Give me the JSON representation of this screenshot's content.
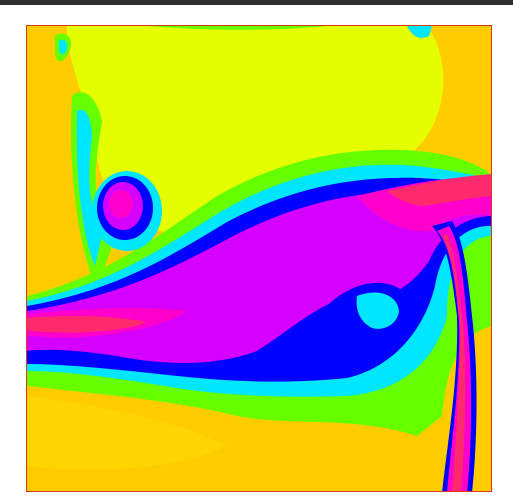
{
  "window": {
    "title": ""
  },
  "colors": {
    "frame_border": "#d9391a",
    "top_bar": "#2e2e2e",
    "palette": [
      "#ffcc00",
      "#e6ff00",
      "#c8ff00",
      "#66ff00",
      "#00ff66",
      "#00e6ff",
      "#0000ff",
      "#d600ff",
      "#ff00cc",
      "#ff2a6d"
    ]
  },
  "image": {
    "kind": "false-color field map",
    "icon": "heatmap-image"
  }
}
